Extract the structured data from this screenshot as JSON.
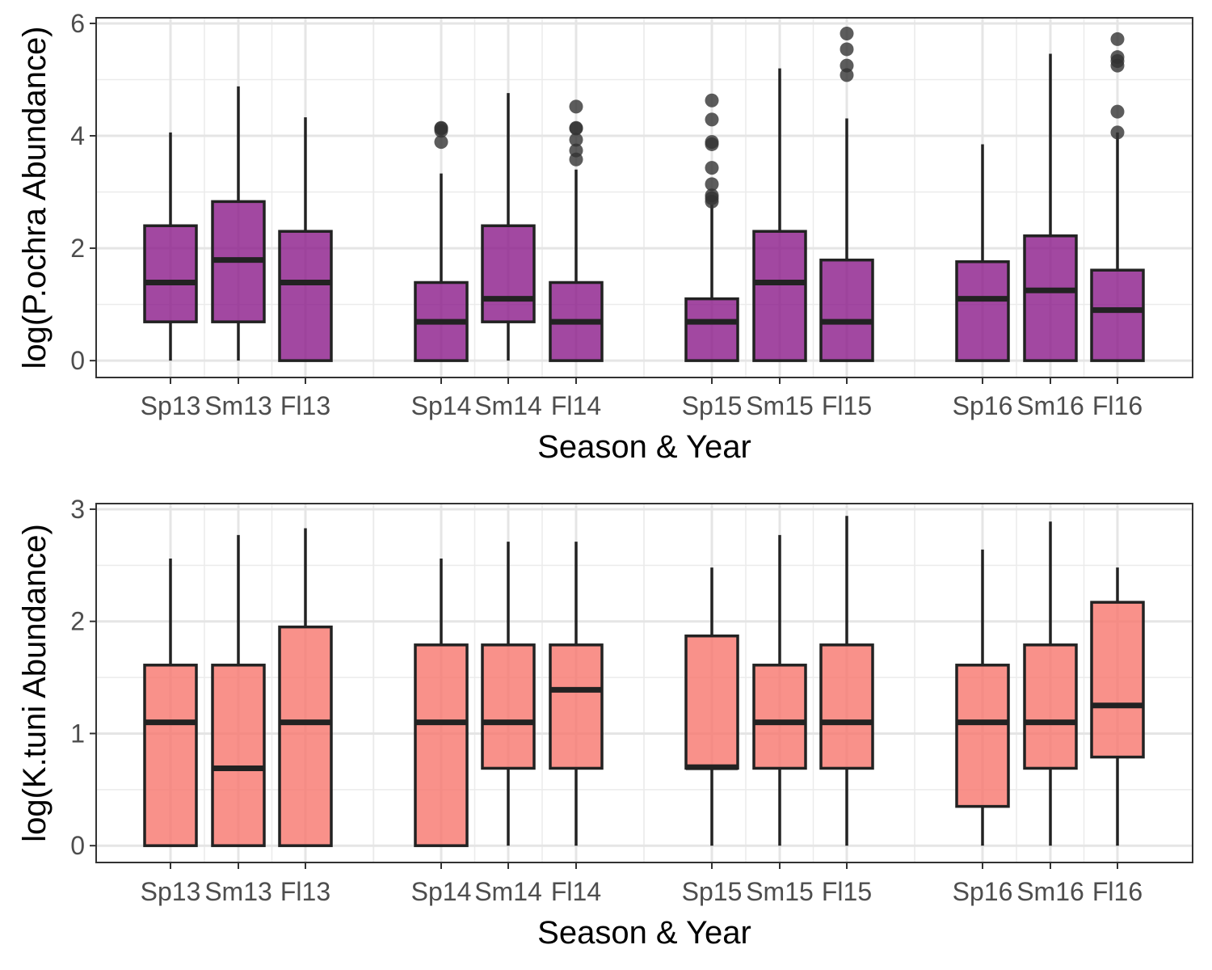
{
  "chart_data": [
    {
      "type": "box",
      "xlabel": "Season & Year",
      "ylabel": "log(P.ochra Abundance)",
      "ylim": [
        -0.3,
        6.1
      ],
      "yticks": [
        0,
        2,
        4,
        6
      ],
      "grid": true,
      "fill_color": "#8B1A89",
      "categories": [
        "Sp13",
        "Sm13",
        "Fl13",
        "Sp14",
        "Sm14",
        "Fl14",
        "Sp15",
        "Sm15",
        "Fl15",
        "Sp16",
        "Sm16",
        "Fl16"
      ],
      "groups": [
        {
          "label": "Sp13",
          "min": 0,
          "q1": 0.69,
          "median": 1.39,
          "q3": 2.4,
          "max": 4.06,
          "outliers": []
        },
        {
          "label": "Sm13",
          "min": 0,
          "q1": 0.69,
          "median": 1.79,
          "q3": 2.83,
          "max": 4.88,
          "outliers": []
        },
        {
          "label": "Fl13",
          "min": 0,
          "q1": 0,
          "median": 1.39,
          "q3": 2.3,
          "max": 4.33,
          "outliers": []
        },
        {
          "label": "Sp14",
          "min": 0,
          "q1": 0,
          "median": 0.69,
          "q3": 1.39,
          "max": 3.33,
          "outliers": [
            3.89,
            4.09,
            4.13,
            4.14
          ]
        },
        {
          "label": "Sm14",
          "min": 0,
          "q1": 0.69,
          "median": 1.1,
          "q3": 2.4,
          "max": 4.76,
          "outliers": []
        },
        {
          "label": "Fl14",
          "min": 0,
          "q1": 0,
          "median": 0.69,
          "q3": 1.39,
          "max": 3.4,
          "outliers": [
            3.58,
            3.74,
            3.93,
            4.13,
            4.14,
            4.52
          ]
        },
        {
          "label": "Sp15",
          "min": 0,
          "q1": 0,
          "median": 0.69,
          "q3": 1.1,
          "max": 2.77,
          "outliers": [
            2.83,
            2.89,
            2.94,
            3.14,
            3.43,
            3.85,
            3.89,
            4.29,
            4.63
          ]
        },
        {
          "label": "Sm15",
          "min": 0,
          "q1": 0,
          "median": 1.39,
          "q3": 2.3,
          "max": 5.2,
          "outliers": []
        },
        {
          "label": "Fl15",
          "min": 0,
          "q1": 0,
          "median": 0.69,
          "q3": 1.79,
          "max": 4.31,
          "outliers": [
            5.08,
            5.25,
            5.54,
            5.82
          ]
        },
        {
          "label": "Sp16",
          "min": 0,
          "q1": 0,
          "median": 1.1,
          "q3": 1.76,
          "max": 3.85,
          "outliers": []
        },
        {
          "label": "Sm16",
          "min": 0,
          "q1": 0,
          "median": 1.25,
          "q3": 2.22,
          "max": 5.46,
          "outliers": []
        },
        {
          "label": "Fl16",
          "min": 0,
          "q1": 0,
          "median": 0.9,
          "q3": 1.61,
          "max": 4.06,
          "outliers": [
            4.06,
            4.43,
            5.25,
            5.33,
            5.4,
            5.72
          ]
        }
      ]
    },
    {
      "type": "box",
      "xlabel": "Season & Year",
      "ylabel": "log(K.tuni Abundance)",
      "ylim": [
        -0.15,
        3.05
      ],
      "yticks": [
        0,
        1,
        2,
        3
      ],
      "grid": true,
      "fill_color": "#F8766D",
      "categories": [
        "Sp13",
        "Sm13",
        "Fl13",
        "Sp14",
        "Sm14",
        "Fl14",
        "Sp15",
        "Sm15",
        "Fl15",
        "Sp16",
        "Sm16",
        "Fl16"
      ],
      "groups": [
        {
          "label": "Sp13",
          "min": 0,
          "q1": 0,
          "median": 1.1,
          "q3": 1.61,
          "max": 2.56,
          "outliers": []
        },
        {
          "label": "Sm13",
          "min": 0,
          "q1": 0,
          "median": 0.69,
          "q3": 1.61,
          "max": 2.77,
          "outliers": []
        },
        {
          "label": "Fl13",
          "min": 0,
          "q1": 0,
          "median": 1.1,
          "q3": 1.95,
          "max": 2.83,
          "outliers": []
        },
        {
          "label": "Sp14",
          "min": 0,
          "q1": 0,
          "median": 1.1,
          "q3": 1.79,
          "max": 2.56,
          "outliers": []
        },
        {
          "label": "Sm14",
          "min": 0,
          "q1": 0.69,
          "median": 1.1,
          "q3": 1.79,
          "max": 2.71,
          "outliers": []
        },
        {
          "label": "Fl14",
          "min": 0,
          "q1": 0.69,
          "median": 1.39,
          "q3": 1.79,
          "max": 2.71,
          "outliers": []
        },
        {
          "label": "Sp15",
          "min": 0,
          "q1": 0.69,
          "median": 0.7,
          "q3": 1.87,
          "max": 2.48,
          "outliers": []
        },
        {
          "label": "Sm15",
          "min": 0,
          "q1": 0.69,
          "median": 1.1,
          "q3": 1.61,
          "max": 2.77,
          "outliers": []
        },
        {
          "label": "Fl15",
          "min": 0,
          "q1": 0.69,
          "median": 1.1,
          "q3": 1.79,
          "max": 2.94,
          "outliers": []
        },
        {
          "label": "Sp16",
          "min": 0,
          "q1": 0.35,
          "median": 1.1,
          "q3": 1.61,
          "max": 2.64,
          "outliers": []
        },
        {
          "label": "Sm16",
          "min": 0,
          "q1": 0.69,
          "median": 1.1,
          "q3": 1.79,
          "max": 2.89,
          "outliers": []
        },
        {
          "label": "Fl16",
          "min": 0,
          "q1": 0.79,
          "median": 1.25,
          "q3": 2.17,
          "max": 2.48,
          "outliers": []
        }
      ]
    }
  ]
}
